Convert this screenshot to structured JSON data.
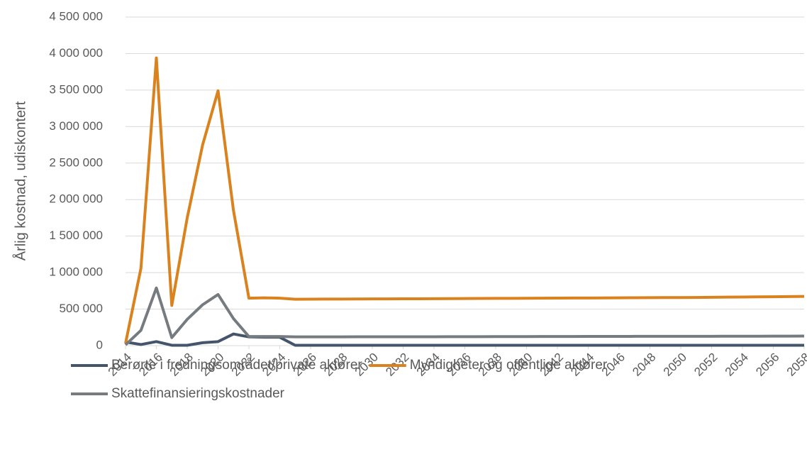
{
  "chart_data": {
    "type": "line",
    "y_label": "Årlig kostnad, udiskontert",
    "x": [
      2014,
      2015,
      2016,
      2017,
      2018,
      2019,
      2020,
      2021,
      2022,
      2023,
      2024,
      2025,
      2026,
      2027,
      2028,
      2029,
      2030,
      2031,
      2032,
      2033,
      2034,
      2035,
      2036,
      2037,
      2038,
      2039,
      2040,
      2041,
      2042,
      2043,
      2044,
      2045,
      2046,
      2047,
      2048,
      2049,
      2050,
      2051,
      2052,
      2053,
      2054,
      2055,
      2056,
      2057,
      2058
    ],
    "xlim": [
      2014,
      2058
    ],
    "xticks": [
      2014,
      2016,
      2018,
      2020,
      2022,
      2024,
      2026,
      2028,
      2030,
      2032,
      2034,
      2036,
      2038,
      2040,
      2042,
      2044,
      2046,
      2048,
      2050,
      2052,
      2054,
      2056,
      2058
    ],
    "ylim": [
      0,
      4500000
    ],
    "yticks": [
      0,
      {
        "value": 500000,
        "label": "500 000"
      },
      {
        "value": 1000000,
        "label": "1 000 000"
      },
      {
        "value": 1500000,
        "label": "1 500 000"
      },
      {
        "value": 2000000,
        "label": "2 000 000"
      },
      {
        "value": 2500000,
        "label": "2 500 000"
      },
      {
        "value": 3000000,
        "label": "3 000 000"
      },
      {
        "value": 3500000,
        "label": "3 500 000"
      },
      {
        "value": 4000000,
        "label": "4 000 000"
      },
      {
        "value": 4500000,
        "label": "4 500 000"
      }
    ],
    "grid": true,
    "legend": "bottom",
    "series": [
      {
        "name": "Berørte i fredningsområdet/private aktører",
        "color": "#44546a",
        "values": [
          50000,
          15000,
          55000,
          5000,
          5000,
          40000,
          55000,
          160000,
          120000,
          115000,
          115000,
          5000,
          5000,
          5000,
          5000,
          5000,
          5000,
          5000,
          5000,
          5000,
          5000,
          5000,
          5000,
          5000,
          5000,
          5000,
          5000,
          5000,
          5000,
          5000,
          5000,
          5000,
          5000,
          5000,
          5000,
          5000,
          5000,
          5000,
          5000,
          5000,
          5000,
          5000,
          5000,
          5000,
          5000
        ]
      },
      {
        "name": "Myndigheter og offentlige aktører",
        "color": "#d9821e",
        "values": [
          30000,
          1060000,
          3940000,
          550000,
          1750000,
          2750000,
          3490000,
          1850000,
          650000,
          655000,
          650000,
          635000,
          637000,
          638000,
          638000,
          639000,
          640000,
          640000,
          641000,
          642000,
          643000,
          644000,
          645000,
          646000,
          647000,
          648000,
          649000,
          650000,
          651000,
          652000,
          653000,
          654000,
          655000,
          656000,
          657000,
          658000,
          659000,
          660000,
          662000,
          664000,
          666000,
          668000,
          670000,
          672000,
          674000
        ]
      },
      {
        "name": "Skattefinansieringskostnader",
        "color": "#767b80",
        "values": [
          10000,
          210000,
          790000,
          110000,
          360000,
          560000,
          700000,
          370000,
          125000,
          125000,
          125000,
          120000,
          120000,
          120000,
          120000,
          121000,
          121000,
          121000,
          122000,
          122000,
          122000,
          123000,
          123000,
          123000,
          124000,
          124000,
          124000,
          125000,
          125000,
          125000,
          126000,
          126000,
          126000,
          127000,
          127000,
          127000,
          128000,
          128000,
          128000,
          129000,
          129000,
          129000,
          130000,
          130000,
          131000
        ]
      }
    ]
  }
}
